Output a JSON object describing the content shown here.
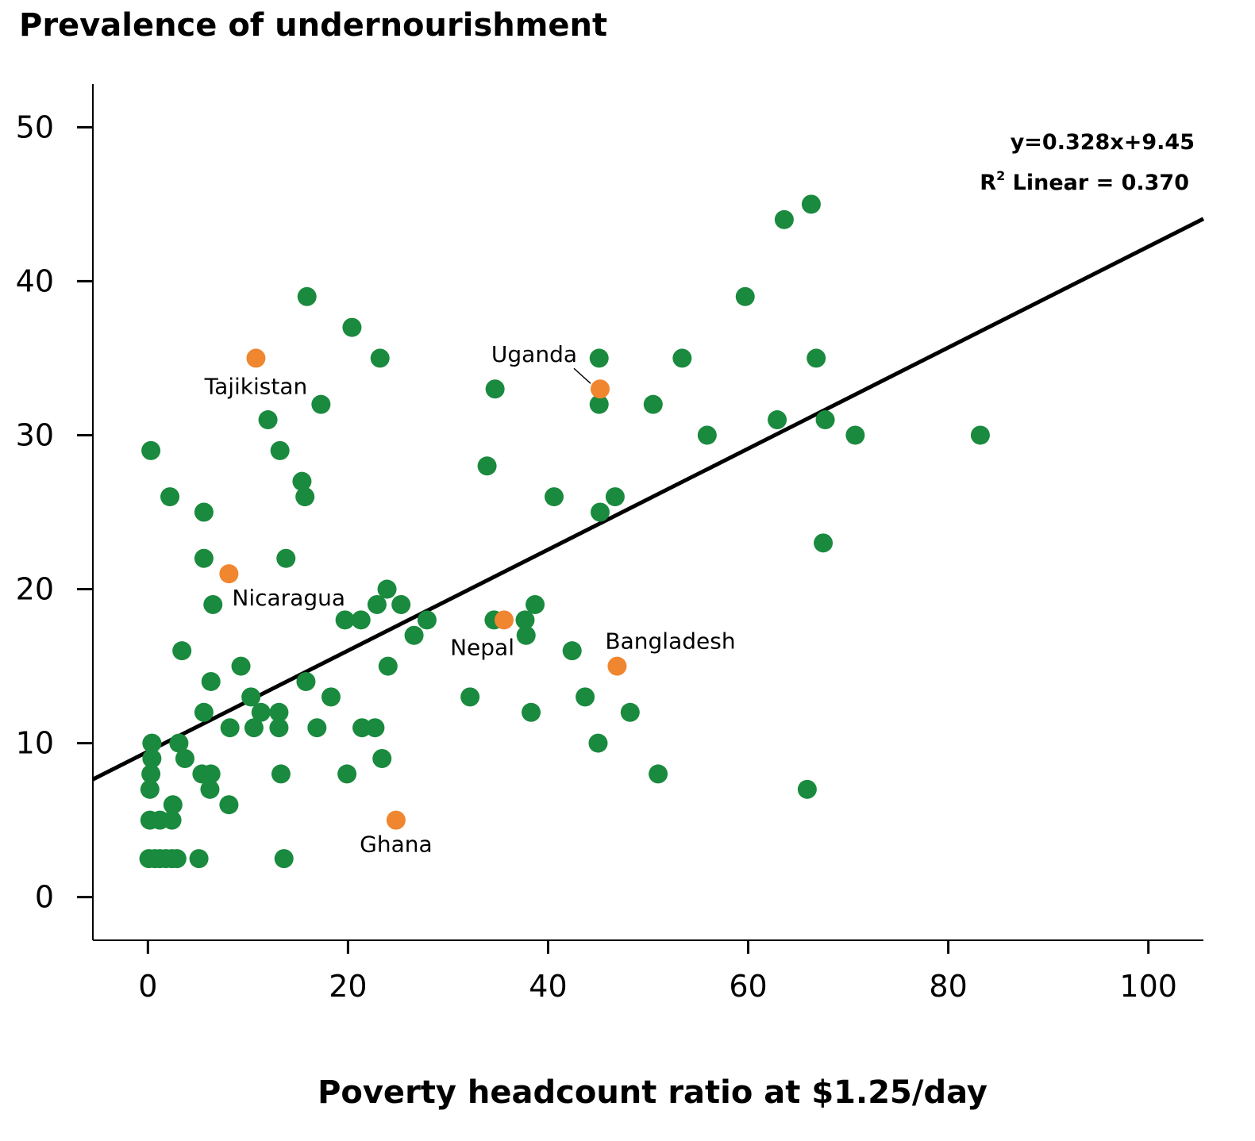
{
  "chart_data": {
    "type": "scatter",
    "title": "Prevalence of undernourishment",
    "xlabel": "Poverty headcount ratio at $1.25/day",
    "ylabel": "",
    "xlim": [
      -5.5,
      105.5
    ],
    "ylim": [
      -2.8,
      52.8
    ],
    "xticks": [
      0,
      20,
      40,
      60,
      80,
      100
    ],
    "yticks": [
      0,
      10,
      20,
      30,
      40,
      50
    ],
    "grid": false,
    "colors": {
      "default": "#1a8a3e",
      "highlight": "#f0862f",
      "line": "#000000"
    },
    "trendline": {
      "slope": 0.328,
      "intercept": 9.45,
      "x_range": [
        -5.5,
        105.5
      ],
      "equation_label": "y=0.328x+9.45",
      "r2_label_main": "R",
      "r2_label_sup": "2",
      "r2_label_rest": " Linear = 0.370"
    },
    "series": [
      {
        "points": [
          [
            0.3,
            29
          ],
          [
            2.2,
            26
          ],
          [
            5.6,
            25
          ],
          [
            5.6,
            22
          ],
          [
            6.5,
            19
          ],
          [
            3.4,
            16
          ],
          [
            6.3,
            14
          ],
          [
            5.6,
            12
          ],
          [
            8.2,
            11
          ],
          [
            8.1,
            6
          ],
          [
            6.3,
            8
          ],
          [
            6.2,
            7
          ],
          [
            5.4,
            8
          ],
          [
            0.4,
            10
          ],
          [
            0.4,
            9
          ],
          [
            0.3,
            8
          ],
          [
            0.2,
            7
          ],
          [
            3.1,
            10
          ],
          [
            3.7,
            9
          ],
          [
            2.5,
            6
          ],
          [
            0.2,
            5
          ],
          [
            1.2,
            5
          ],
          [
            2.4,
            5
          ],
          [
            0.1,
            2.5
          ],
          [
            0.7,
            2.5
          ],
          [
            1.2,
            2.5
          ],
          [
            1.8,
            2.5
          ],
          [
            2.4,
            2.5
          ],
          [
            2.9,
            2.5
          ],
          [
            5.1,
            2.5
          ],
          [
            9.3,
            15
          ],
          [
            10.3,
            13
          ],
          [
            11.3,
            12
          ],
          [
            10.6,
            11
          ],
          [
            13.1,
            12
          ],
          [
            13.1,
            11
          ],
          [
            13.3,
            8
          ],
          [
            13.6,
            2.5
          ],
          [
            15.9,
            39
          ],
          [
            17.3,
            32
          ],
          [
            12.0,
            31
          ],
          [
            13.2,
            29
          ],
          [
            15.4,
            27
          ],
          [
            15.7,
            26
          ],
          [
            13.8,
            22
          ],
          [
            15.8,
            14
          ],
          [
            18.3,
            13
          ],
          [
            16.9,
            11
          ],
          [
            20.4,
            37
          ],
          [
            23.2,
            35
          ],
          [
            23.9,
            20
          ],
          [
            22.9,
            19
          ],
          [
            25.3,
            19
          ],
          [
            19.7,
            18
          ],
          [
            21.3,
            18
          ],
          [
            24.0,
            15
          ],
          [
            21.4,
            11
          ],
          [
            22.7,
            11
          ],
          [
            23.4,
            9
          ],
          [
            19.9,
            8
          ],
          [
            27.9,
            18
          ],
          [
            26.6,
            17
          ],
          [
            34.7,
            33
          ],
          [
            33.9,
            28
          ],
          [
            34.6,
            18
          ],
          [
            37.7,
            18
          ],
          [
            37.8,
            17
          ],
          [
            38.7,
            19
          ],
          [
            32.2,
            13
          ],
          [
            38.3,
            12
          ],
          [
            45.1,
            35
          ],
          [
            45.1,
            32
          ],
          [
            50.5,
            32
          ],
          [
            53.4,
            35
          ],
          [
            40.6,
            26
          ],
          [
            46.7,
            26
          ],
          [
            45.2,
            25
          ],
          [
            42.4,
            16
          ],
          [
            43.7,
            13
          ],
          [
            48.2,
            12
          ],
          [
            45.0,
            10
          ],
          [
            51.0,
            8
          ],
          [
            66.3,
            45
          ],
          [
            63.6,
            44
          ],
          [
            59.7,
            39
          ],
          [
            66.8,
            35
          ],
          [
            62.9,
            31
          ],
          [
            67.7,
            31
          ],
          [
            55.9,
            30
          ],
          [
            70.7,
            30
          ],
          [
            83.2,
            30
          ],
          [
            67.5,
            23
          ],
          [
            65.9,
            7
          ]
        ]
      },
      {
        "points": [
          [
            10.8,
            35,
            "Tajikistan"
          ],
          [
            45.2,
            33,
            "Uganda"
          ],
          [
            8.1,
            21,
            "Nicaragua"
          ],
          [
            35.6,
            18,
            "Nepal"
          ],
          [
            46.9,
            15,
            "Bangladesh"
          ],
          [
            24.8,
            5,
            "Ghana"
          ]
        ]
      }
    ]
  }
}
